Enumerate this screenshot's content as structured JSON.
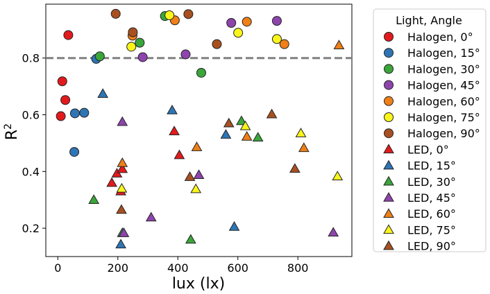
{
  "chart_data": {
    "type": "scatter",
    "xlabel": "lux (lx)",
    "ylabel": "R",
    "ylabel_superscript": "2",
    "xlim": [
      -40,
      980
    ],
    "ylim": [
      0.1,
      0.99
    ],
    "xticks": [
      0,
      200,
      400,
      600,
      800
    ],
    "yticks": [
      0.2,
      0.4,
      0.6,
      0.8
    ],
    "xtick_labels": [
      "0",
      "200",
      "400",
      "600",
      "800"
    ],
    "ytick_labels": [
      "0.2",
      "0.4",
      "0.6",
      "0.8"
    ],
    "grid": false,
    "reference_line": {
      "y": 0.8,
      "style": "dashed",
      "color": "#808080"
    },
    "legend": {
      "title": "Light, Angle",
      "placement": "outside-right"
    },
    "series": [
      {
        "name": "Halogen, 0°",
        "marker": "circle",
        "color": "#e31a1c",
        "points": [
          [
            10,
            0.595
          ],
          [
            15,
            0.718
          ],
          [
            25,
            0.652
          ],
          [
            35,
            0.881
          ]
        ]
      },
      {
        "name": "Halogen, 15°",
        "marker": "circle",
        "color": "#2e75b6",
        "points": [
          [
            55,
            0.469
          ],
          [
            57,
            0.605
          ],
          [
            88,
            0.607
          ],
          [
            128,
            0.797
          ]
        ]
      },
      {
        "name": "Halogen, 30°",
        "marker": "circle",
        "color": "#3aa63a",
        "points": [
          [
            140,
            0.806
          ],
          [
            273,
            0.854
          ],
          [
            357,
            0.948
          ],
          [
            478,
            0.748
          ]
        ]
      },
      {
        "name": "Halogen, 45°",
        "marker": "circle",
        "color": "#8e44ad",
        "points": [
          [
            283,
            0.803
          ],
          [
            426,
            0.813
          ],
          [
            578,
            0.924
          ],
          [
            730,
            0.931
          ]
        ]
      },
      {
        "name": "Halogen, 60°",
        "marker": "circle",
        "color": "#f07f17",
        "points": [
          [
            249,
            0.879
          ],
          [
            390,
            0.933
          ],
          [
            630,
            0.928
          ],
          [
            755,
            0.849
          ]
        ]
      },
      {
        "name": "Halogen, 75°",
        "marker": "circle",
        "color": "#f9f51a",
        "points": [
          [
            245,
            0.84
          ],
          [
            372,
            0.951
          ],
          [
            601,
            0.889
          ],
          [
            730,
            0.867
          ]
        ]
      },
      {
        "name": "Halogen, 90°",
        "marker": "circle",
        "color": "#a85020",
        "points": [
          [
            193,
            0.956
          ],
          [
            250,
            0.891
          ],
          [
            435,
            0.955
          ],
          [
            530,
            0.849
          ]
        ]
      },
      {
        "name": "LED, 0°",
        "marker": "triangle",
        "color": "#e31a1c",
        "points": [
          [
            180,
            0.36
          ],
          [
            197,
            0.393
          ],
          [
            210,
            0.33
          ],
          [
            215,
            0.409
          ],
          [
            388,
            0.542
          ],
          [
            405,
            0.458
          ]
        ]
      },
      {
        "name": "LED, 15°",
        "marker": "triangle",
        "color": "#2e75b6",
        "points": [
          [
            150,
            0.674
          ],
          [
            210,
            0.143
          ],
          [
            381,
            0.616
          ],
          [
            560,
            0.53
          ],
          [
            588,
            0.205
          ]
        ]
      },
      {
        "name": "LED, 30°",
        "marker": "triangle",
        "color": "#3aa63a",
        "points": [
          [
            120,
            0.3
          ],
          [
            215,
            0.183
          ],
          [
            443,
            0.16
          ],
          [
            612,
            0.578
          ],
          [
            667,
            0.52
          ]
        ]
      },
      {
        "name": "LED, 45°",
        "marker": "triangle",
        "color": "#8e44ad",
        "points": [
          [
            215,
            0.575
          ],
          [
            220,
            0.183
          ],
          [
            311,
            0.238
          ],
          [
            470,
            0.388
          ],
          [
            918,
            0.185
          ]
        ]
      },
      {
        "name": "LED, 60°",
        "marker": "triangle",
        "color": "#f07f17",
        "points": [
          [
            215,
            0.43
          ],
          [
            463,
            0.486
          ],
          [
            630,
            0.523
          ],
          [
            820,
            0.483
          ],
          [
            937,
            0.845
          ]
        ]
      },
      {
        "name": "LED, 75°",
        "marker": "triangle",
        "color": "#f9f51a",
        "points": [
          [
            213,
            0.34
          ],
          [
            460,
            0.338
          ],
          [
            625,
            0.56
          ],
          [
            810,
            0.535
          ],
          [
            932,
            0.383
          ]
        ]
      },
      {
        "name": "LED, 90°",
        "marker": "triangle",
        "color": "#a85020",
        "points": [
          [
            212,
            0.265
          ],
          [
            440,
            0.381
          ],
          [
            570,
            0.57
          ],
          [
            713,
            0.602
          ],
          [
            790,
            0.41
          ]
        ]
      }
    ]
  }
}
